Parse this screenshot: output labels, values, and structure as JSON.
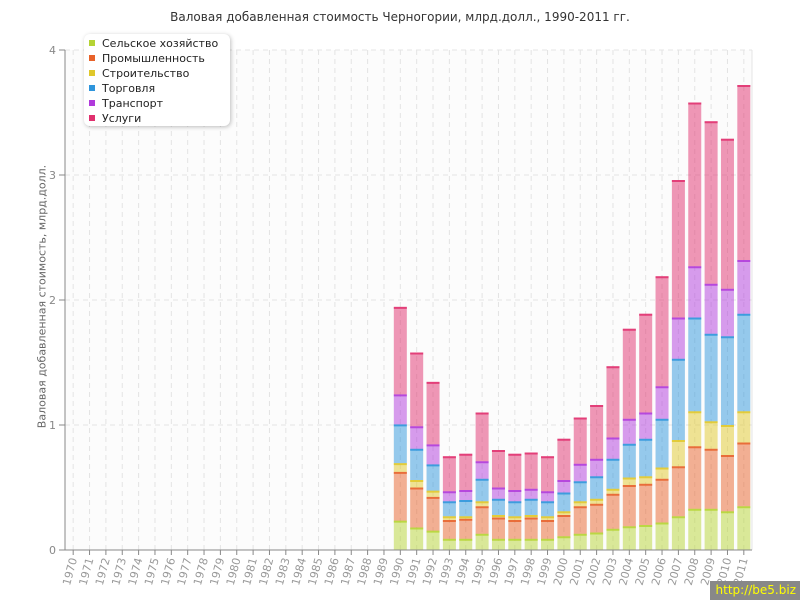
{
  "chart_data": {
    "type": "bar",
    "stacked": true,
    "title": "Валовая добавленная стоимость Черногории, млрд.долл., 1990-2011 гг.",
    "xlabel": "",
    "ylabel": "Валовая добавленная стоимость, млрд.долл.",
    "ylim": [
      0,
      4
    ],
    "yticks": [
      "0",
      "1",
      "2",
      "3",
      "4"
    ],
    "grid": true,
    "legend_position": "top-left",
    "categories": [
      "1970",
      "1971",
      "1972",
      "1973",
      "1974",
      "1975",
      "1976",
      "1977",
      "1978",
      "1979",
      "1980",
      "1981",
      "1982",
      "1983",
      "1984",
      "1985",
      "1986",
      "1987",
      "1988",
      "1989",
      "1990",
      "1991",
      "1992",
      "1993",
      "1994",
      "1995",
      "1996",
      "1997",
      "1998",
      "1999",
      "2000",
      "2001",
      "2002",
      "2003",
      "2004",
      "2005",
      "2006",
      "2007",
      "2008",
      "2009",
      "2010",
      "2011"
    ],
    "series": [
      {
        "name": "Сельское хозяйство",
        "color": "#b5d334",
        "values": [
          0,
          0,
          0,
          0,
          0,
          0,
          0,
          0,
          0,
          0,
          0,
          0,
          0,
          0,
          0,
          0,
          0,
          0,
          0,
          0,
          0.235,
          0.18,
          0.155,
          0.09,
          0.09,
          0.13,
          0.09,
          0.09,
          0.09,
          0.09,
          0.11,
          0.13,
          0.14,
          0.17,
          0.19,
          0.2,
          0.22,
          0.27,
          0.33,
          0.33,
          0.31,
          0.35
        ]
      },
      {
        "name": "Промышленность",
        "color": "#e8622a",
        "values": [
          0,
          0,
          0,
          0,
          0,
          0,
          0,
          0,
          0,
          0,
          0,
          0,
          0,
          0,
          0,
          0,
          0,
          0,
          0,
          0,
          0.39,
          0.32,
          0.27,
          0.15,
          0.16,
          0.22,
          0.17,
          0.15,
          0.17,
          0.15,
          0.17,
          0.22,
          0.23,
          0.28,
          0.33,
          0.33,
          0.35,
          0.4,
          0.5,
          0.48,
          0.45,
          0.51
        ]
      },
      {
        "name": "Строительство",
        "color": "#e0c82a",
        "values": [
          0,
          0,
          0,
          0,
          0,
          0,
          0,
          0,
          0,
          0,
          0,
          0,
          0,
          0,
          0,
          0,
          0,
          0,
          0,
          0,
          0.07,
          0.06,
          0.05,
          0.03,
          0.02,
          0.04,
          0.02,
          0.03,
          0.02,
          0.03,
          0.03,
          0.04,
          0.04,
          0.04,
          0.06,
          0.06,
          0.09,
          0.21,
          0.28,
          0.22,
          0.24,
          0.25
        ]
      },
      {
        "name": "Торговля",
        "color": "#2e95dc",
        "values": [
          0,
          0,
          0,
          0,
          0,
          0,
          0,
          0,
          0,
          0,
          0,
          0,
          0,
          0,
          0,
          0,
          0,
          0,
          0,
          0,
          0.31,
          0.25,
          0.21,
          0.12,
          0.13,
          0.18,
          0.13,
          0.12,
          0.13,
          0.12,
          0.15,
          0.16,
          0.18,
          0.24,
          0.27,
          0.3,
          0.39,
          0.65,
          0.75,
          0.7,
          0.71,
          0.78
        ]
      },
      {
        "name": "Транспорт",
        "color": "#b03adb",
        "values": [
          0,
          0,
          0,
          0,
          0,
          0,
          0,
          0,
          0,
          0,
          0,
          0,
          0,
          0,
          0,
          0,
          0,
          0,
          0,
          0,
          0.24,
          0.18,
          0.16,
          0.08,
          0.08,
          0.14,
          0.09,
          0.09,
          0.08,
          0.08,
          0.1,
          0.14,
          0.14,
          0.17,
          0.2,
          0.21,
          0.26,
          0.33,
          0.41,
          0.4,
          0.38,
          0.43
        ]
      },
      {
        "name": "Услуги",
        "color": "#e0306e",
        "values": [
          0,
          0,
          0,
          0,
          0,
          0,
          0,
          0,
          0,
          0,
          0,
          0,
          0,
          0,
          0,
          0,
          0,
          0,
          0,
          0,
          0.7,
          0.59,
          0.5,
          0.28,
          0.29,
          0.39,
          0.3,
          0.29,
          0.29,
          0.28,
          0.33,
          0.37,
          0.43,
          0.57,
          0.72,
          0.79,
          0.88,
          1.1,
          1.31,
          1.3,
          1.2,
          1.4
        ]
      }
    ]
  },
  "watermark": "http://be5.biz"
}
